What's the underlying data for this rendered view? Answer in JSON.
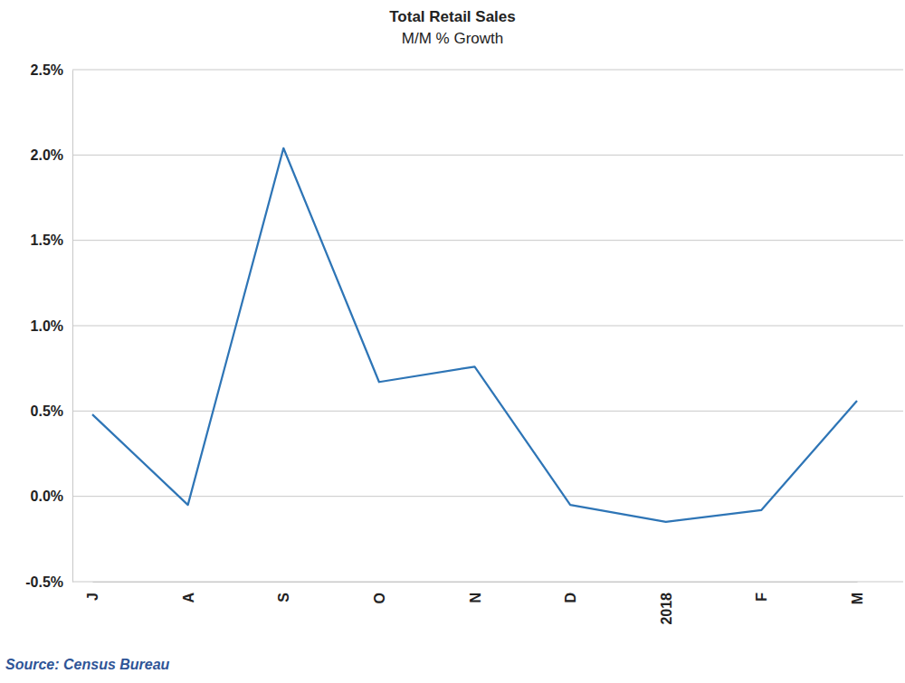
{
  "chart_data": {
    "type": "line",
    "title": "Total Retail Sales",
    "subtitle": "M/M % Growth",
    "source": "Source: Census Bureau",
    "categories": [
      "J",
      "A",
      "S",
      "O",
      "N",
      "D",
      "2018",
      "F",
      "M"
    ],
    "values": [
      0.48,
      -0.05,
      2.04,
      0.67,
      0.76,
      -0.05,
      -0.15,
      -0.08,
      0.56
    ],
    "color": "#2e75b6",
    "ylim": [
      -0.5,
      2.5
    ],
    "yticks": [
      {
        "value": -0.5,
        "label": "-0.5%"
      },
      {
        "value": 0.0,
        "label": "0.0%"
      },
      {
        "value": 0.5,
        "label": "0.5%"
      },
      {
        "value": 1.0,
        "label": "1.0%"
      },
      {
        "value": 1.5,
        "label": "1.5%"
      },
      {
        "value": 2.0,
        "label": "2.0%"
      },
      {
        "value": 2.5,
        "label": "2.5%"
      }
    ],
    "grid": true
  }
}
